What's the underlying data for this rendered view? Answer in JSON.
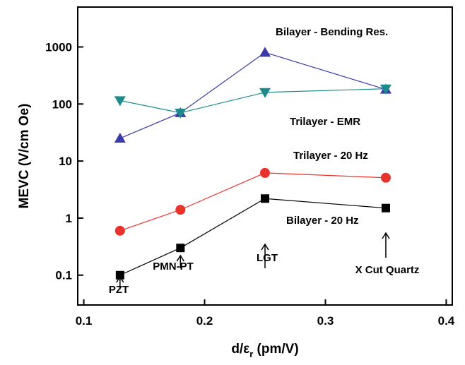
{
  "chart_data": {
    "type": "line",
    "y_label": "MEVC (V/cm Oe)",
    "x_label_parts": [
      "d/ε",
      "r",
      " (pm/V)"
    ],
    "xlim": [
      0.095,
      0.405
    ],
    "xticks": [
      0.1,
      0.2,
      0.3,
      0.4
    ],
    "ylim": [
      0.03,
      5000
    ],
    "yticks": [
      0.1,
      1,
      10,
      100,
      1000
    ],
    "log_y": true,
    "x": [
      0.13,
      0.18,
      0.25,
      0.35
    ],
    "series": [
      {
        "name": "Bilayer - Bending Res.",
        "color": "#3a3aa8",
        "marker": "triangle-up",
        "values": [
          25,
          70,
          800,
          180
        ]
      },
      {
        "name": "Trilayer - EMR",
        "color": "#1d8b8b",
        "marker": "triangle-down",
        "values": [
          115,
          70,
          160,
          185
        ]
      },
      {
        "name": "Trilayer - 20 Hz",
        "color": "#e8332c",
        "marker": "circle",
        "values": [
          0.6,
          1.4,
          6.2,
          5.1
        ]
      },
      {
        "name": "Bilayer - 20 Hz",
        "color": "#000000",
        "marker": "square",
        "values": [
          0.1,
          0.3,
          2.2,
          1.5
        ]
      }
    ],
    "annotations": [
      "PZT",
      "PMN-PT",
      "LGT",
      "X Cut Quartz"
    ]
  }
}
